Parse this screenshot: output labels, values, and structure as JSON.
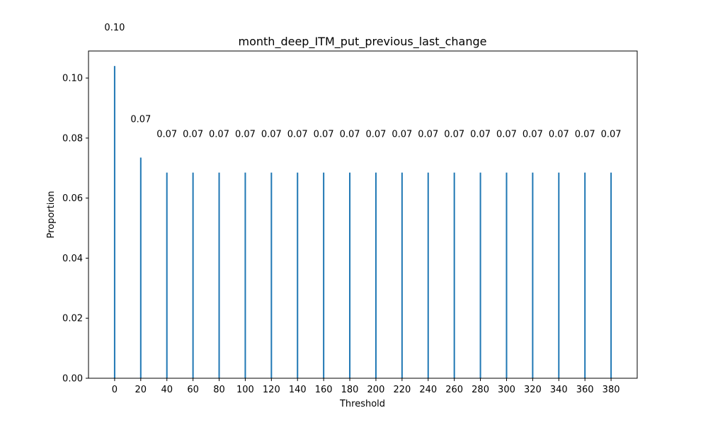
{
  "chart_data": {
    "type": "bar",
    "title": "month_deep_ITM_put_previous_last_change",
    "xlabel": "Threshold",
    "ylabel": "Proportion",
    "x": [
      0,
      20,
      40,
      60,
      80,
      100,
      120,
      140,
      160,
      180,
      200,
      220,
      240,
      260,
      280,
      300,
      320,
      340,
      360,
      380
    ],
    "values": [
      0.104,
      0.0735,
      0.0685,
      0.0685,
      0.0685,
      0.0685,
      0.0685,
      0.0685,
      0.0685,
      0.0685,
      0.0685,
      0.0685,
      0.0685,
      0.0685,
      0.0685,
      0.0685,
      0.0685,
      0.0685,
      0.0685,
      0.0685
    ],
    "data_labels": [
      "0.10",
      "0.07",
      "0.07",
      "0.07",
      "0.07",
      "0.07",
      "0.07",
      "0.07",
      "0.07",
      "0.07",
      "0.07",
      "0.07",
      "0.07",
      "0.07",
      "0.07",
      "0.07",
      "0.07",
      "0.07",
      "0.07",
      "0.07"
    ],
    "xticks": [
      "0",
      "20",
      "40",
      "60",
      "80",
      "100",
      "120",
      "140",
      "160",
      "180",
      "200",
      "220",
      "240",
      "260",
      "280",
      "300",
      "320",
      "340",
      "360",
      "380"
    ],
    "yticks": [
      "0.00",
      "0.02",
      "0.04",
      "0.06",
      "0.08",
      "0.10"
    ],
    "xlim": [
      -20,
      400
    ],
    "ylim": [
      0,
      0.109
    ],
    "grid": false,
    "bar_color": "#1f77b4"
  }
}
